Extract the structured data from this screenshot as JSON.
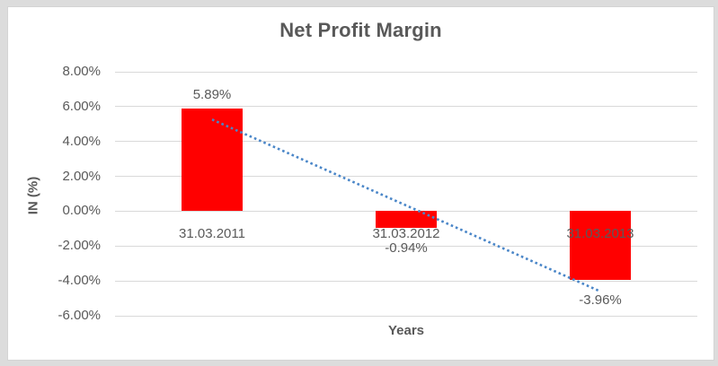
{
  "chart_data": {
    "type": "bar",
    "title": "Net Profit Margin",
    "xlabel": "Years",
    "ylabel": "IN (%)",
    "categories": [
      "31.03.2011",
      "31.03.2012",
      "31.03.2013"
    ],
    "values": [
      5.89,
      -0.94,
      -3.96
    ],
    "data_labels": [
      "5.89%",
      "-0.94%",
      "-3.96%"
    ],
    "yticks": {
      "values": [
        8,
        6,
        4,
        2,
        0,
        -2,
        -4,
        -6
      ],
      "labels": [
        "8.00%",
        "6.00%",
        "4.00%",
        "2.00%",
        "0.00%",
        "-2.00%",
        "-4.00%",
        "-6.00%"
      ]
    },
    "ylim": [
      -6,
      8
    ],
    "grid": true,
    "legend": "none",
    "colors": {
      "bar": "#ff0000",
      "text": "#595959",
      "gridline": "#d9d9d9",
      "trendline": "#4a86c8",
      "chart_background": "#ffffff",
      "page_background": "#dcdcdc"
    },
    "trendline": {
      "type": "linear",
      "style": "dotted",
      "color": "#4a86c8",
      "fit_values": [
        5.26,
        0.33,
        -4.6
      ]
    }
  }
}
